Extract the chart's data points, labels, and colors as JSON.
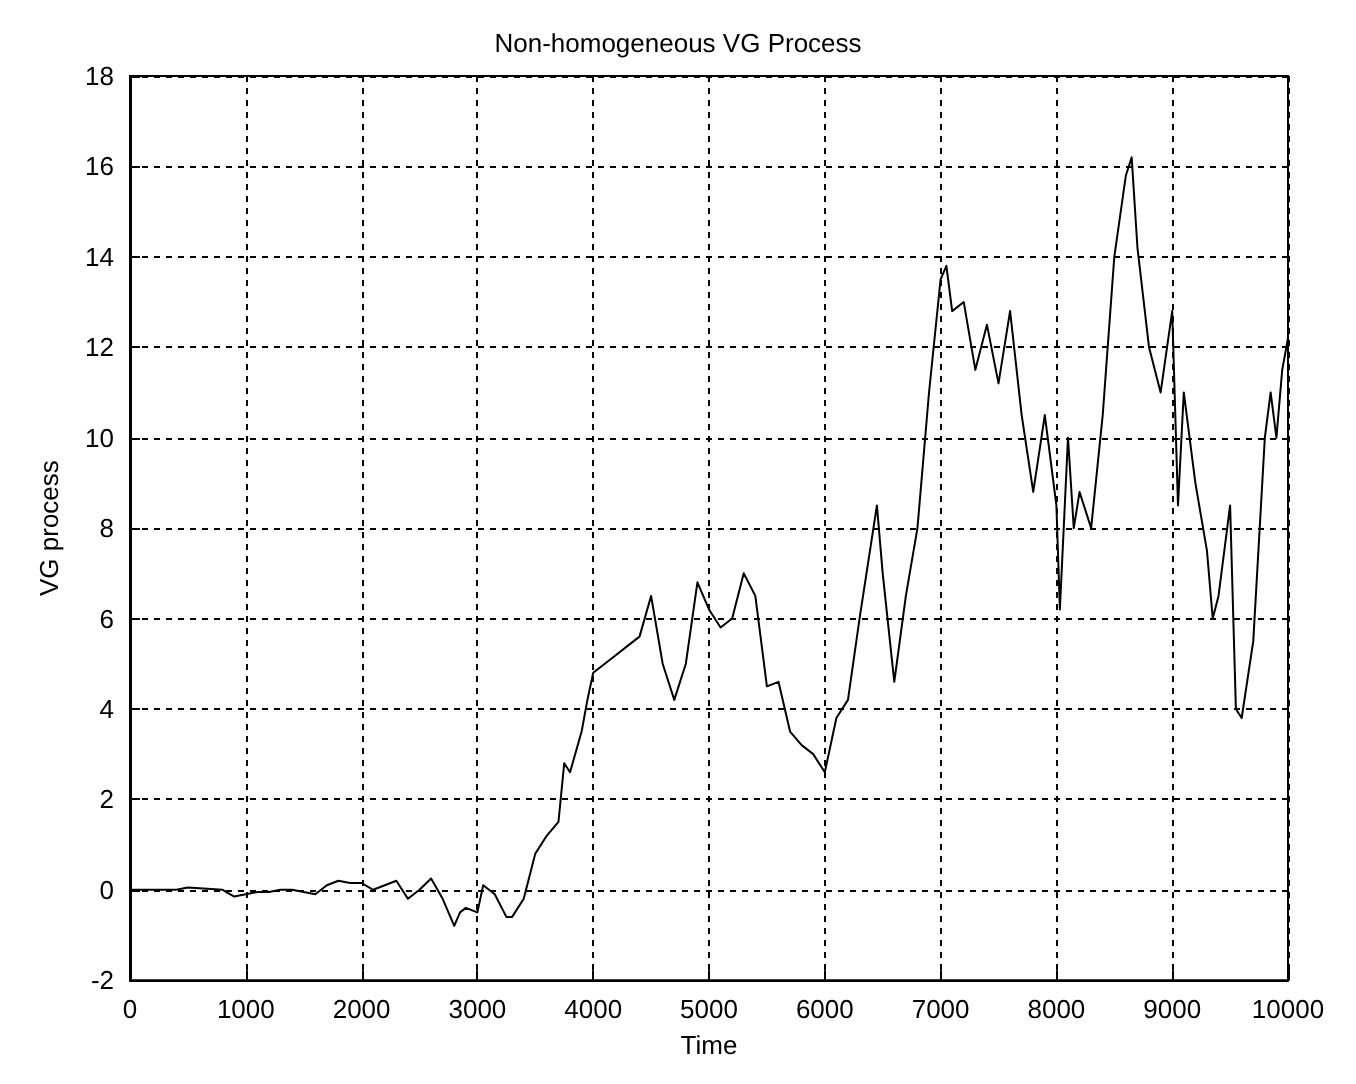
{
  "chart_data": {
    "type": "line",
    "title": "Non-homogeneous VG Process",
    "xlabel": "Time",
    "ylabel": "VG process",
    "x": [
      0,
      400,
      500,
      800,
      900,
      1000,
      1100,
      1200,
      1300,
      1400,
      1500,
      1600,
      1700,
      1800,
      1900,
      2000,
      2100,
      2200,
      2300,
      2400,
      2500,
      2600,
      2700,
      2800,
      2850,
      2900,
      3000,
      3050,
      3150,
      3250,
      3300,
      3400,
      3500,
      3600,
      3700,
      3750,
      3800,
      3900,
      3950,
      4000,
      4100,
      4200,
      4300,
      4400,
      4500,
      4600,
      4700,
      4800,
      4900,
      5000,
      5100,
      5200,
      5300,
      5400,
      5500,
      5600,
      5700,
      5800,
      5900,
      6000,
      6100,
      6200,
      6300,
      6450,
      6500,
      6600,
      6700,
      6800,
      6900,
      7000,
      7050,
      7100,
      7200,
      7300,
      7400,
      7500,
      7600,
      7700,
      7800,
      7900,
      8000,
      8030,
      8100,
      8150,
      8200,
      8300,
      8400,
      8500,
      8600,
      8650,
      8700,
      8800,
      8900,
      9000,
      9050,
      9100,
      9200,
      9300,
      9350,
      9400,
      9500,
      9550,
      9600,
      9700,
      9800,
      9850,
      9900,
      9950,
      10000
    ],
    "series": [
      {
        "color": "#000000",
        "values": [
          0,
          0,
          0.05,
          0,
          -0.15,
          -0.1,
          -0.05,
          -0.05,
          0,
          0,
          -0.05,
          -0.1,
          0.1,
          0.2,
          0.15,
          0.15,
          0,
          0.1,
          0.2,
          -0.2,
          0,
          0.25,
          -0.2,
          -0.8,
          -0.5,
          -0.4,
          -0.5,
          0.1,
          -0.1,
          -0.6,
          -0.6,
          -0.2,
          0.8,
          1.2,
          1.5,
          2.8,
          2.6,
          3.5,
          4.2,
          4.8,
          5,
          5.2,
          5.4,
          5.6,
          6.5,
          5,
          4.2,
          5,
          6.8,
          6.2,
          5.8,
          6,
          7,
          6.5,
          4.5,
          4.6,
          3.5,
          3.2,
          3,
          2.6,
          3.8,
          4.2,
          6,
          8.5,
          7,
          4.6,
          6.5,
          8,
          11,
          13.5,
          13.8,
          12.8,
          13,
          11.5,
          12.5,
          11.2,
          12.8,
          10.5,
          8.8,
          10.5,
          8.5,
          6.2,
          10,
          8,
          8.8,
          8,
          10.5,
          14,
          15.8,
          16.2,
          14.2,
          12,
          11,
          12.8,
          8.5,
          11,
          9,
          7.5,
          6,
          6.5,
          8.5,
          4,
          3.8,
          5.5,
          10,
          11,
          10,
          11.5,
          12.2
        ]
      }
    ],
    "xlim": [
      0,
      10000
    ],
    "xticks": [
      0,
      1000,
      2000,
      3000,
      4000,
      5000,
      6000,
      7000,
      8000,
      9000,
      10000
    ],
    "ylim": [
      -2,
      18
    ],
    "yticks": [
      -2,
      0,
      2,
      4,
      6,
      8,
      10,
      12,
      14,
      16,
      18
    ],
    "grid": true,
    "marker": "none",
    "line_style": "solid"
  }
}
